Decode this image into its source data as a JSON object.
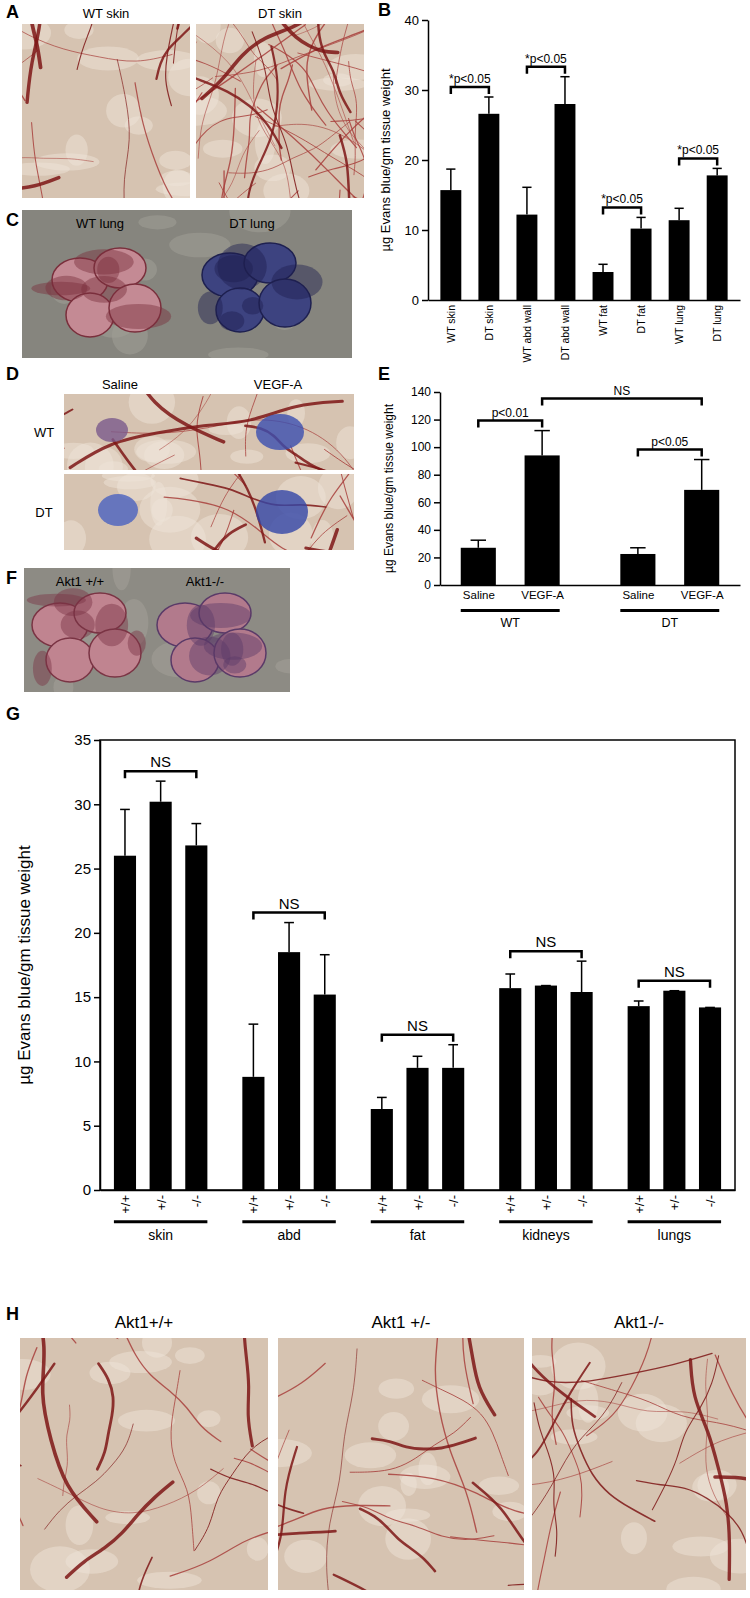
{
  "photos": [
    {
      "panel": "A",
      "labels": [
        "WT skin",
        "DT skin"
      ]
    },
    {
      "panel": "C",
      "labels": [
        "WT lung",
        "DT lung"
      ]
    },
    {
      "panel": "D",
      "column_labels": [
        "Saline",
        "VEGF-A"
      ],
      "row_labels": [
        "WT",
        "DT"
      ]
    },
    {
      "panel": "F",
      "labels": [
        "Akt1 +/+",
        "Akt1-/-"
      ]
    },
    {
      "panel": "H",
      "labels": [
        "Akt1+/+",
        "Akt1 +/-",
        "Akt1-/-"
      ]
    }
  ],
  "chart_data": [
    {
      "panel": "B",
      "type": "bar",
      "ylabel": "µg Evans blue/gm tissue weight",
      "categories": [
        "WT skin",
        "DT skin",
        "WT abd wall",
        "DT abd wall",
        "WT fat",
        "DT fat",
        "WT lung",
        "DT lung"
      ],
      "values": [
        15.7,
        26.6,
        12.2,
        28.0,
        4.0,
        10.2,
        11.4,
        17.8
      ],
      "errors": [
        3.0,
        2.4,
        3.9,
        3.9,
        1.1,
        1.6,
        1.7,
        1.0
      ],
      "color": "#000000",
      "ylim": [
        0,
        40
      ],
      "yticks": [
        0,
        10,
        20,
        30,
        40
      ],
      "brackets": [
        {
          "from": 0,
          "to": 1,
          "label": "*p<0.05"
        },
        {
          "from": 2,
          "to": 3,
          "label": "*p<0.05"
        },
        {
          "from": 4,
          "to": 5,
          "label": "*p<0.05"
        },
        {
          "from": 6,
          "to": 7,
          "label": "*p<0.05"
        }
      ]
    },
    {
      "panel": "E",
      "type": "bar",
      "ylabel": "µg Evans blue/gm tissue weight",
      "categories": [
        "Saline",
        "VEGF-A",
        "Saline",
        "VEGF-A"
      ],
      "values": [
        27,
        94,
        22.5,
        69
      ],
      "errors": [
        5.5,
        18,
        4.5,
        22
      ],
      "color": "#000000",
      "ylim": [
        0,
        140
      ],
      "yticks": [
        0,
        20,
        40,
        60,
        80,
        100,
        120,
        140
      ],
      "groups": [
        {
          "label": "WT",
          "from": 0,
          "to": 1
        },
        {
          "label": "DT",
          "from": 2,
          "to": 3
        }
      ],
      "brackets": [
        {
          "from": 0,
          "to": 1,
          "label": "p<0.01"
        },
        {
          "from": 2,
          "to": 3,
          "label": "p<0.05"
        },
        {
          "from": 1,
          "to": 3,
          "label": "NS"
        }
      ]
    },
    {
      "panel": "G",
      "type": "bar",
      "ylabel": "µg Evans blue/gm tissue weight",
      "categories": [
        "+/+",
        "+/-",
        "-/-",
        "+/+",
        "+/-",
        "-/-",
        "+/+",
        "+/-",
        "-/-",
        "+/+",
        "+/-",
        "-/-",
        "+/+",
        "+/-",
        "-/-"
      ],
      "values": [
        26.0,
        30.2,
        26.8,
        8.8,
        18.5,
        15.2,
        6.3,
        9.5,
        9.5,
        15.7,
        15.9,
        15.4,
        14.3,
        15.5,
        14.2
      ],
      "errors": [
        3.6,
        1.6,
        1.7,
        4.1,
        2.3,
        3.1,
        0.9,
        0.9,
        1.8,
        1.1,
        0,
        2.4,
        0.4,
        0,
        0
      ],
      "color": "#000000",
      "ylim": [
        0,
        35
      ],
      "yticks": [
        0,
        5,
        10,
        15,
        20,
        25,
        30,
        35
      ],
      "groups": [
        {
          "label": "skin",
          "from": 0,
          "to": 2
        },
        {
          "label": "abd",
          "from": 3,
          "to": 5
        },
        {
          "label": "fat",
          "from": 6,
          "to": 8
        },
        {
          "label": "kidneys",
          "from": 9,
          "to": 11
        },
        {
          "label": "lungs",
          "from": 12,
          "to": 14
        }
      ],
      "brackets": [
        {
          "from": 0,
          "to": 2,
          "label": "NS"
        },
        {
          "from": 3,
          "to": 5,
          "label": "NS"
        },
        {
          "from": 6,
          "to": 8,
          "label": "NS"
        },
        {
          "from": 9,
          "to": 11,
          "label": "NS"
        },
        {
          "from": 12,
          "to": 14,
          "label": "NS"
        }
      ]
    }
  ]
}
